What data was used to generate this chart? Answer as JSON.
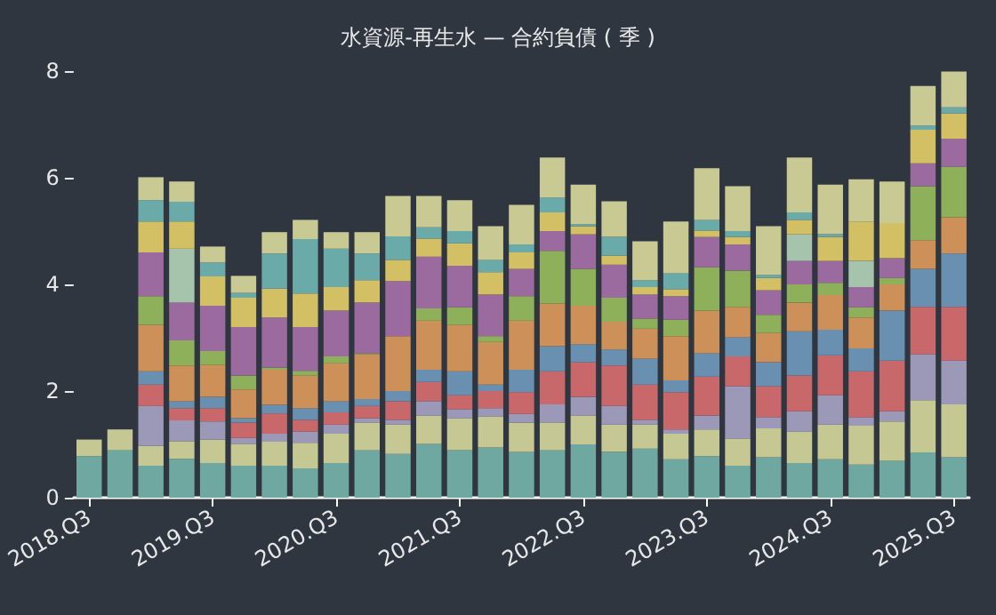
{
  "chart_data": {
    "type": "bar",
    "title": "水資源-再生水 — 合約負債 ( 季 )",
    "stacked": true,
    "categories": [
      "2018.Q3",
      null,
      null,
      null,
      "2019.Q3",
      null,
      null,
      null,
      "2020.Q3",
      null,
      null,
      null,
      "2021.Q3",
      null,
      null,
      null,
      "2022.Q3",
      null,
      null,
      null,
      "2023.Q3",
      null,
      null,
      null,
      "2024.Q3",
      null,
      null,
      null,
      "2025.Q3"
    ],
    "ylim": [
      0,
      8
    ],
    "yticks": [
      0,
      2,
      4,
      6,
      8
    ],
    "series": [
      {
        "color": "#6fa8a0",
        "values": [
          0.78,
          0.89,
          0.6,
          0.73,
          0.65,
          0.6,
          0.6,
          0.55,
          0.65,
          0.89,
          0.82,
          1.01,
          0.89,
          0.94,
          0.86,
          0.89,
          1.0,
          0.86,
          0.92,
          0.72,
          0.78,
          0.6,
          0.76,
          0.65,
          0.72,
          0.62,
          0.69,
          0.85,
          0.76
        ]
      },
      {
        "color": "#c6c893",
        "values": [
          0.31,
          0.39,
          0.37,
          0.33,
          0.44,
          0.41,
          0.45,
          0.48,
          0.55,
          0.52,
          0.55,
          0.53,
          0.6,
          0.58,
          0.55,
          0.52,
          0.54,
          0.51,
          0.45,
          0.48,
          0.5,
          0.51,
          0.54,
          0.59,
          0.65,
          0.73,
          0.74,
          0.98,
          0.99
        ]
      },
      {
        "color": "#9b98b8",
        "values": [
          null,
          null,
          0.75,
          0.39,
          0.34,
          0.11,
          0.15,
          0.21,
          0.17,
          0.08,
          0.09,
          0.27,
          0.17,
          0.16,
          0.16,
          0.34,
          0.35,
          0.35,
          0.09,
          0.08,
          0.26,
          0.98,
          0.21,
          0.38,
          0.55,
          0.16,
          0.19,
          0.86,
          0.82
        ]
      },
      {
        "color": "#c8686a",
        "values": [
          null,
          null,
          0.4,
          0.23,
          0.25,
          0.29,
          0.38,
          0.22,
          0.23,
          0.23,
          0.35,
          0.36,
          0.26,
          0.32,
          0.41,
          0.62,
          0.65,
          0.76,
          0.66,
          0.7,
          0.73,
          0.56,
          0.58,
          0.67,
          0.75,
          0.86,
          0.95,
          0.89,
          1.01
        ]
      },
      {
        "color": "#6990b0",
        "values": [
          null,
          null,
          0.25,
          0.13,
          0.21,
          0.08,
          0.16,
          0.22,
          0.21,
          0.13,
          0.19,
          0.23,
          0.45,
          0.12,
          0.42,
          0.47,
          0.34,
          0.3,
          0.49,
          0.22,
          0.44,
          0.36,
          0.45,
          0.83,
          0.48,
          0.43,
          0.94,
          0.71,
          1.0
        ]
      },
      {
        "color": "#cc9058",
        "values": [
          null,
          null,
          0.87,
          0.67,
          0.6,
          0.54,
          0.66,
          0.61,
          0.71,
          0.84,
          1.03,
          0.92,
          0.87,
          0.8,
          0.92,
          0.8,
          0.72,
          0.52,
          0.56,
          0.83,
          0.8,
          0.57,
          0.55,
          0.54,
          0.65,
          0.58,
          0.49,
          0.54,
          0.68
        ]
      },
      {
        "color": "#8fb05a",
        "values": [
          null,
          null,
          0.54,
          0.47,
          0.26,
          0.26,
          0.04,
          0.09,
          0.13,
          0.02,
          null,
          0.23,
          0.33,
          0.11,
          0.46,
          0.99,
          0.69,
          0.45,
          0.19,
          0.31,
          0.81,
          0.68,
          0.34,
          0.34,
          0.23,
          0.19,
          0.12,
          1.01,
          0.95
        ]
      },
      {
        "color": "#9b6ba0",
        "values": [
          null,
          null,
          0.82,
          0.71,
          0.85,
          0.91,
          0.94,
          0.82,
          0.86,
          0.95,
          1.03,
          0.97,
          0.78,
          0.78,
          0.51,
          0.37,
          0.65,
          0.62,
          0.45,
          0.44,
          0.57,
          0.49,
          0.46,
          0.44,
          0.41,
          0.38,
          0.37,
          0.43,
          0.52
        ]
      },
      {
        "color": "#a6c3ab",
        "values": [
          null,
          null,
          null,
          1.01,
          null,
          null,
          null,
          null,
          null,
          null,
          null,
          null,
          null,
          null,
          null,
          null,
          null,
          null,
          null,
          null,
          null,
          null,
          null,
          0.5,
          null,
          0.49,
          null,
          null,
          null
        ]
      },
      {
        "color": "#d3c065",
        "values": [
          null,
          null,
          0.58,
          0.51,
          0.55,
          0.55,
          0.54,
          0.63,
          0.44,
          0.42,
          0.4,
          0.34,
          0.42,
          0.42,
          0.31,
          0.35,
          0.15,
          0.17,
          0.14,
          0.13,
          0.12,
          0.14,
          0.23,
          0.27,
          0.45,
          0.74,
          0.66,
          0.63,
          0.48
        ]
      },
      {
        "color": "#6aaaa8",
        "values": [
          null,
          null,
          0.4,
          0.37,
          0.26,
          0.09,
          0.66,
          1.02,
          0.72,
          0.5,
          0.44,
          0.21,
          0.23,
          0.23,
          0.15,
          0.28,
          0.04,
          0.35,
          0.13,
          0.3,
          0.2,
          0.11,
          0.06,
          0.14,
          0.05,
          null,
          null,
          0.08,
          0.11
        ]
      },
      {
        "color": "#c8c993",
        "values": [
          null,
          null,
          0.43,
          0.38,
          0.3,
          0.32,
          0.4,
          0.36,
          0.31,
          0.4,
          0.76,
          0.59,
          0.58,
          0.63,
          0.74,
          0.75,
          0.74,
          0.67,
          0.73,
          0.97,
          0.97,
          0.84,
          0.91,
          1.03,
          0.93,
          0.79,
          0.78,
          0.74,
          0.67
        ]
      }
    ]
  }
}
